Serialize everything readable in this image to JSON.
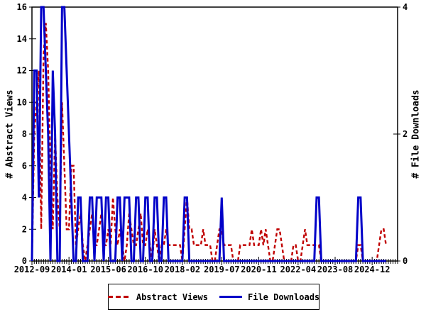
{
  "chart_data": {
    "type": "line",
    "title": "",
    "grid": false,
    "background": "#ffffff",
    "x_monthly": [
      "2012-09",
      "2012-10",
      "2012-11",
      "2012-12",
      "2013-01",
      "2013-02",
      "2013-03",
      "2013-04",
      "2013-05",
      "2013-06",
      "2013-07",
      "2013-08",
      "2013-09",
      "2013-10",
      "2013-11",
      "2013-12",
      "2014-01",
      "2014-02",
      "2014-03",
      "2014-04",
      "2014-05",
      "2014-06",
      "2014-07",
      "2014-08",
      "2014-09",
      "2014-10",
      "2014-11",
      "2014-12",
      "2015-01",
      "2015-02",
      "2015-03",
      "2015-04",
      "2015-05",
      "2015-06",
      "2015-07",
      "2015-08",
      "2015-09",
      "2015-10",
      "2015-11",
      "2015-12",
      "2016-01",
      "2016-02",
      "2016-03",
      "2016-04",
      "2016-05",
      "2016-06",
      "2016-07",
      "2016-08",
      "2016-09",
      "2016-10",
      "2016-11",
      "2016-12",
      "2017-01",
      "2017-02",
      "2017-03",
      "2017-04",
      "2017-05",
      "2017-06",
      "2017-07",
      "2017-08",
      "2017-09",
      "2017-10",
      "2017-11",
      "2017-12",
      "2018-01",
      "2018-02",
      "2018-03",
      "2018-04",
      "2018-05",
      "2018-06",
      "2018-07",
      "2018-08",
      "2018-09",
      "2018-10",
      "2018-11",
      "2018-12",
      "2019-01",
      "2019-02",
      "2019-03",
      "2019-04",
      "2019-05",
      "2019-06",
      "2019-07",
      "2019-08",
      "2019-09",
      "2019-10",
      "2019-11",
      "2019-12",
      "2020-01",
      "2020-02",
      "2020-03",
      "2020-04",
      "2020-05",
      "2020-06",
      "2020-07",
      "2020-08",
      "2020-09",
      "2020-10",
      "2020-11",
      "2020-12",
      "2021-01",
      "2021-02",
      "2021-03",
      "2021-04",
      "2021-05",
      "2021-06",
      "2021-07",
      "2021-08",
      "2021-09",
      "2021-10",
      "2021-11",
      "2021-12",
      "2022-01",
      "2022-02",
      "2022-03",
      "2022-04",
      "2022-05",
      "2022-06",
      "2022-07",
      "2022-08",
      "2022-09",
      "2022-10",
      "2022-11",
      "2022-12",
      "2023-01",
      "2023-02",
      "2023-03",
      "2023-04",
      "2023-05",
      "2023-06",
      "2023-07",
      "2023-08",
      "2023-09",
      "2023-10",
      "2023-11",
      "2023-12",
      "2024-01",
      "2024-02",
      "2024-03",
      "2024-04",
      "2024-05",
      "2024-06",
      "2024-07",
      "2024-08",
      "2024-09",
      "2024-10",
      "2024-11",
      "2024-12",
      "2025-01",
      "2025-02",
      "2025-03",
      "2025-04",
      "2025-05",
      "2025-06"
    ],
    "series": [
      {
        "name": "Abstract Views",
        "axis": "left",
        "color": "#c00000",
        "style": "dashed",
        "values": [
          0,
          8,
          10,
          12,
          2,
          13,
          15,
          12,
          6,
          2,
          8,
          4,
          2,
          10,
          6,
          2,
          2,
          6,
          6,
          1,
          2,
          3,
          1,
          0,
          1,
          2,
          3,
          1,
          1,
          2,
          3,
          1,
          1,
          2,
          1,
          4,
          2,
          1,
          2,
          1,
          0,
          1,
          3,
          2,
          1,
          1,
          2,
          3,
          1,
          1,
          2,
          1,
          0,
          2,
          1,
          0,
          1,
          1,
          2,
          1,
          1,
          1,
          1,
          1,
          1,
          0,
          2,
          4,
          2,
          2,
          1,
          1,
          1,
          1,
          2,
          1,
          1,
          1,
          0,
          0,
          1,
          2,
          2,
          1,
          1,
          1,
          1,
          0,
          0,
          0,
          1,
          1,
          1,
          1,
          1,
          2,
          1,
          1,
          1,
          2,
          1,
          2,
          1,
          0,
          0,
          1,
          2,
          2,
          1,
          0,
          0,
          0,
          0,
          1,
          1,
          0,
          0,
          1,
          2,
          1,
          1,
          1,
          1,
          1,
          1,
          0,
          0,
          0,
          0,
          0,
          0,
          0,
          0,
          0,
          0,
          0,
          0,
          0,
          0,
          0,
          0,
          1,
          1,
          0,
          0,
          0,
          0,
          0,
          0,
          0,
          1,
          2,
          2,
          1
        ]
      },
      {
        "name": "File Downloads",
        "axis": "right",
        "color": "#0000c8",
        "style": "solid",
        "values": [
          0,
          3,
          3,
          1,
          4,
          4,
          3,
          2,
          0,
          3,
          2,
          0,
          0,
          4,
          4,
          3,
          2,
          1,
          0,
          0,
          1,
          1,
          0,
          0,
          0,
          1,
          1,
          0,
          1,
          1,
          1,
          0,
          1,
          1,
          0,
          0,
          0,
          1,
          1,
          0,
          1,
          1,
          1,
          0,
          0,
          1,
          1,
          0,
          0,
          1,
          1,
          0,
          0,
          1,
          1,
          0,
          0,
          1,
          1,
          0,
          0,
          0,
          0,
          0,
          0,
          0,
          1,
          1,
          0,
          0,
          0,
          0,
          0,
          0,
          0,
          0,
          0,
          0,
          0,
          0,
          0,
          0,
          1,
          0,
          0,
          0,
          0,
          0,
          0,
          0,
          0,
          0,
          0,
          0,
          0,
          0,
          0,
          0,
          0,
          0,
          0,
          0,
          0,
          0,
          0,
          0,
          0,
          0,
          0,
          0,
          0,
          0,
          0,
          0,
          0,
          0,
          0,
          0,
          0,
          0,
          0,
          0,
          0,
          1,
          1,
          0,
          0,
          0,
          0,
          0,
          0,
          0,
          0,
          0,
          0,
          0,
          0,
          0,
          0,
          0,
          0,
          1,
          1,
          0,
          0,
          0,
          0,
          0,
          0,
          0,
          0,
          0,
          0,
          0
        ]
      }
    ],
    "left_axis": {
      "label": "# Abstract Views",
      "min": 0,
      "max": 16,
      "ticks": [
        0,
        2,
        4,
        6,
        8,
        10,
        12,
        14,
        16
      ]
    },
    "right_axis": {
      "label": "# File Downloads",
      "min": 0,
      "max": 4,
      "ticks": [
        0,
        2,
        4
      ]
    },
    "x_axis": {
      "tick_labels": [
        "2012-09",
        "2014-01",
        "2015-06",
        "2016-10",
        "2018-02",
        "2019-07",
        "2020-11",
        "2022-04",
        "2023-08",
        "2024-12"
      ],
      "tick_month_indices": [
        0,
        16,
        33,
        49,
        65,
        82,
        98,
        115,
        131,
        147
      ],
      "domain_months": 158,
      "minor_tick_every_months": 1
    },
    "legend": {
      "position": "bottom-center",
      "border": true
    }
  }
}
